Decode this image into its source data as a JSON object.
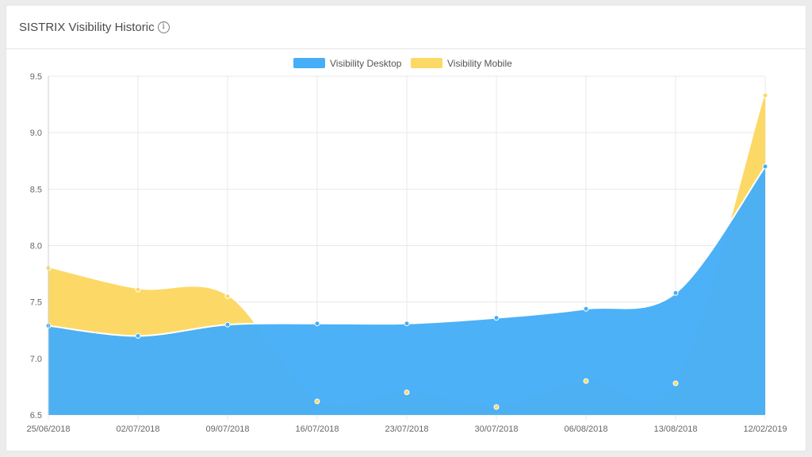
{
  "header": {
    "title": "SISTRIX Visibility Historic",
    "info_icon": "info-icon"
  },
  "colors": {
    "desktop": "#46aef7",
    "mobile": "#fcd966",
    "grid": "#e8e8e8"
  },
  "chart_data": {
    "type": "area",
    "title": "",
    "categories": [
      "25/06/2018",
      "02/07/2018",
      "09/07/2018",
      "16/07/2018",
      "23/07/2018",
      "30/07/2018",
      "06/08/2018",
      "13/08/2018",
      "12/02/2019"
    ],
    "series": [
      {
        "name": "Visibility Desktop",
        "values": [
          7.29,
          7.2,
          7.3,
          7.31,
          7.31,
          7.36,
          7.44,
          7.58,
          8.7
        ],
        "color": "#46aef7"
      },
      {
        "name": "Visibility Mobile",
        "values": [
          7.8,
          7.61,
          7.55,
          6.62,
          6.7,
          6.57,
          6.8,
          6.78,
          9.33
        ],
        "color": "#fcd966"
      }
    ],
    "yticks": [
      "6.5",
      "7.0",
      "7.5",
      "8.0",
      "8.5",
      "9.0",
      "9.5"
    ],
    "ylim": [
      6.5,
      9.5
    ],
    "grid": true,
    "legend": "top-center"
  }
}
